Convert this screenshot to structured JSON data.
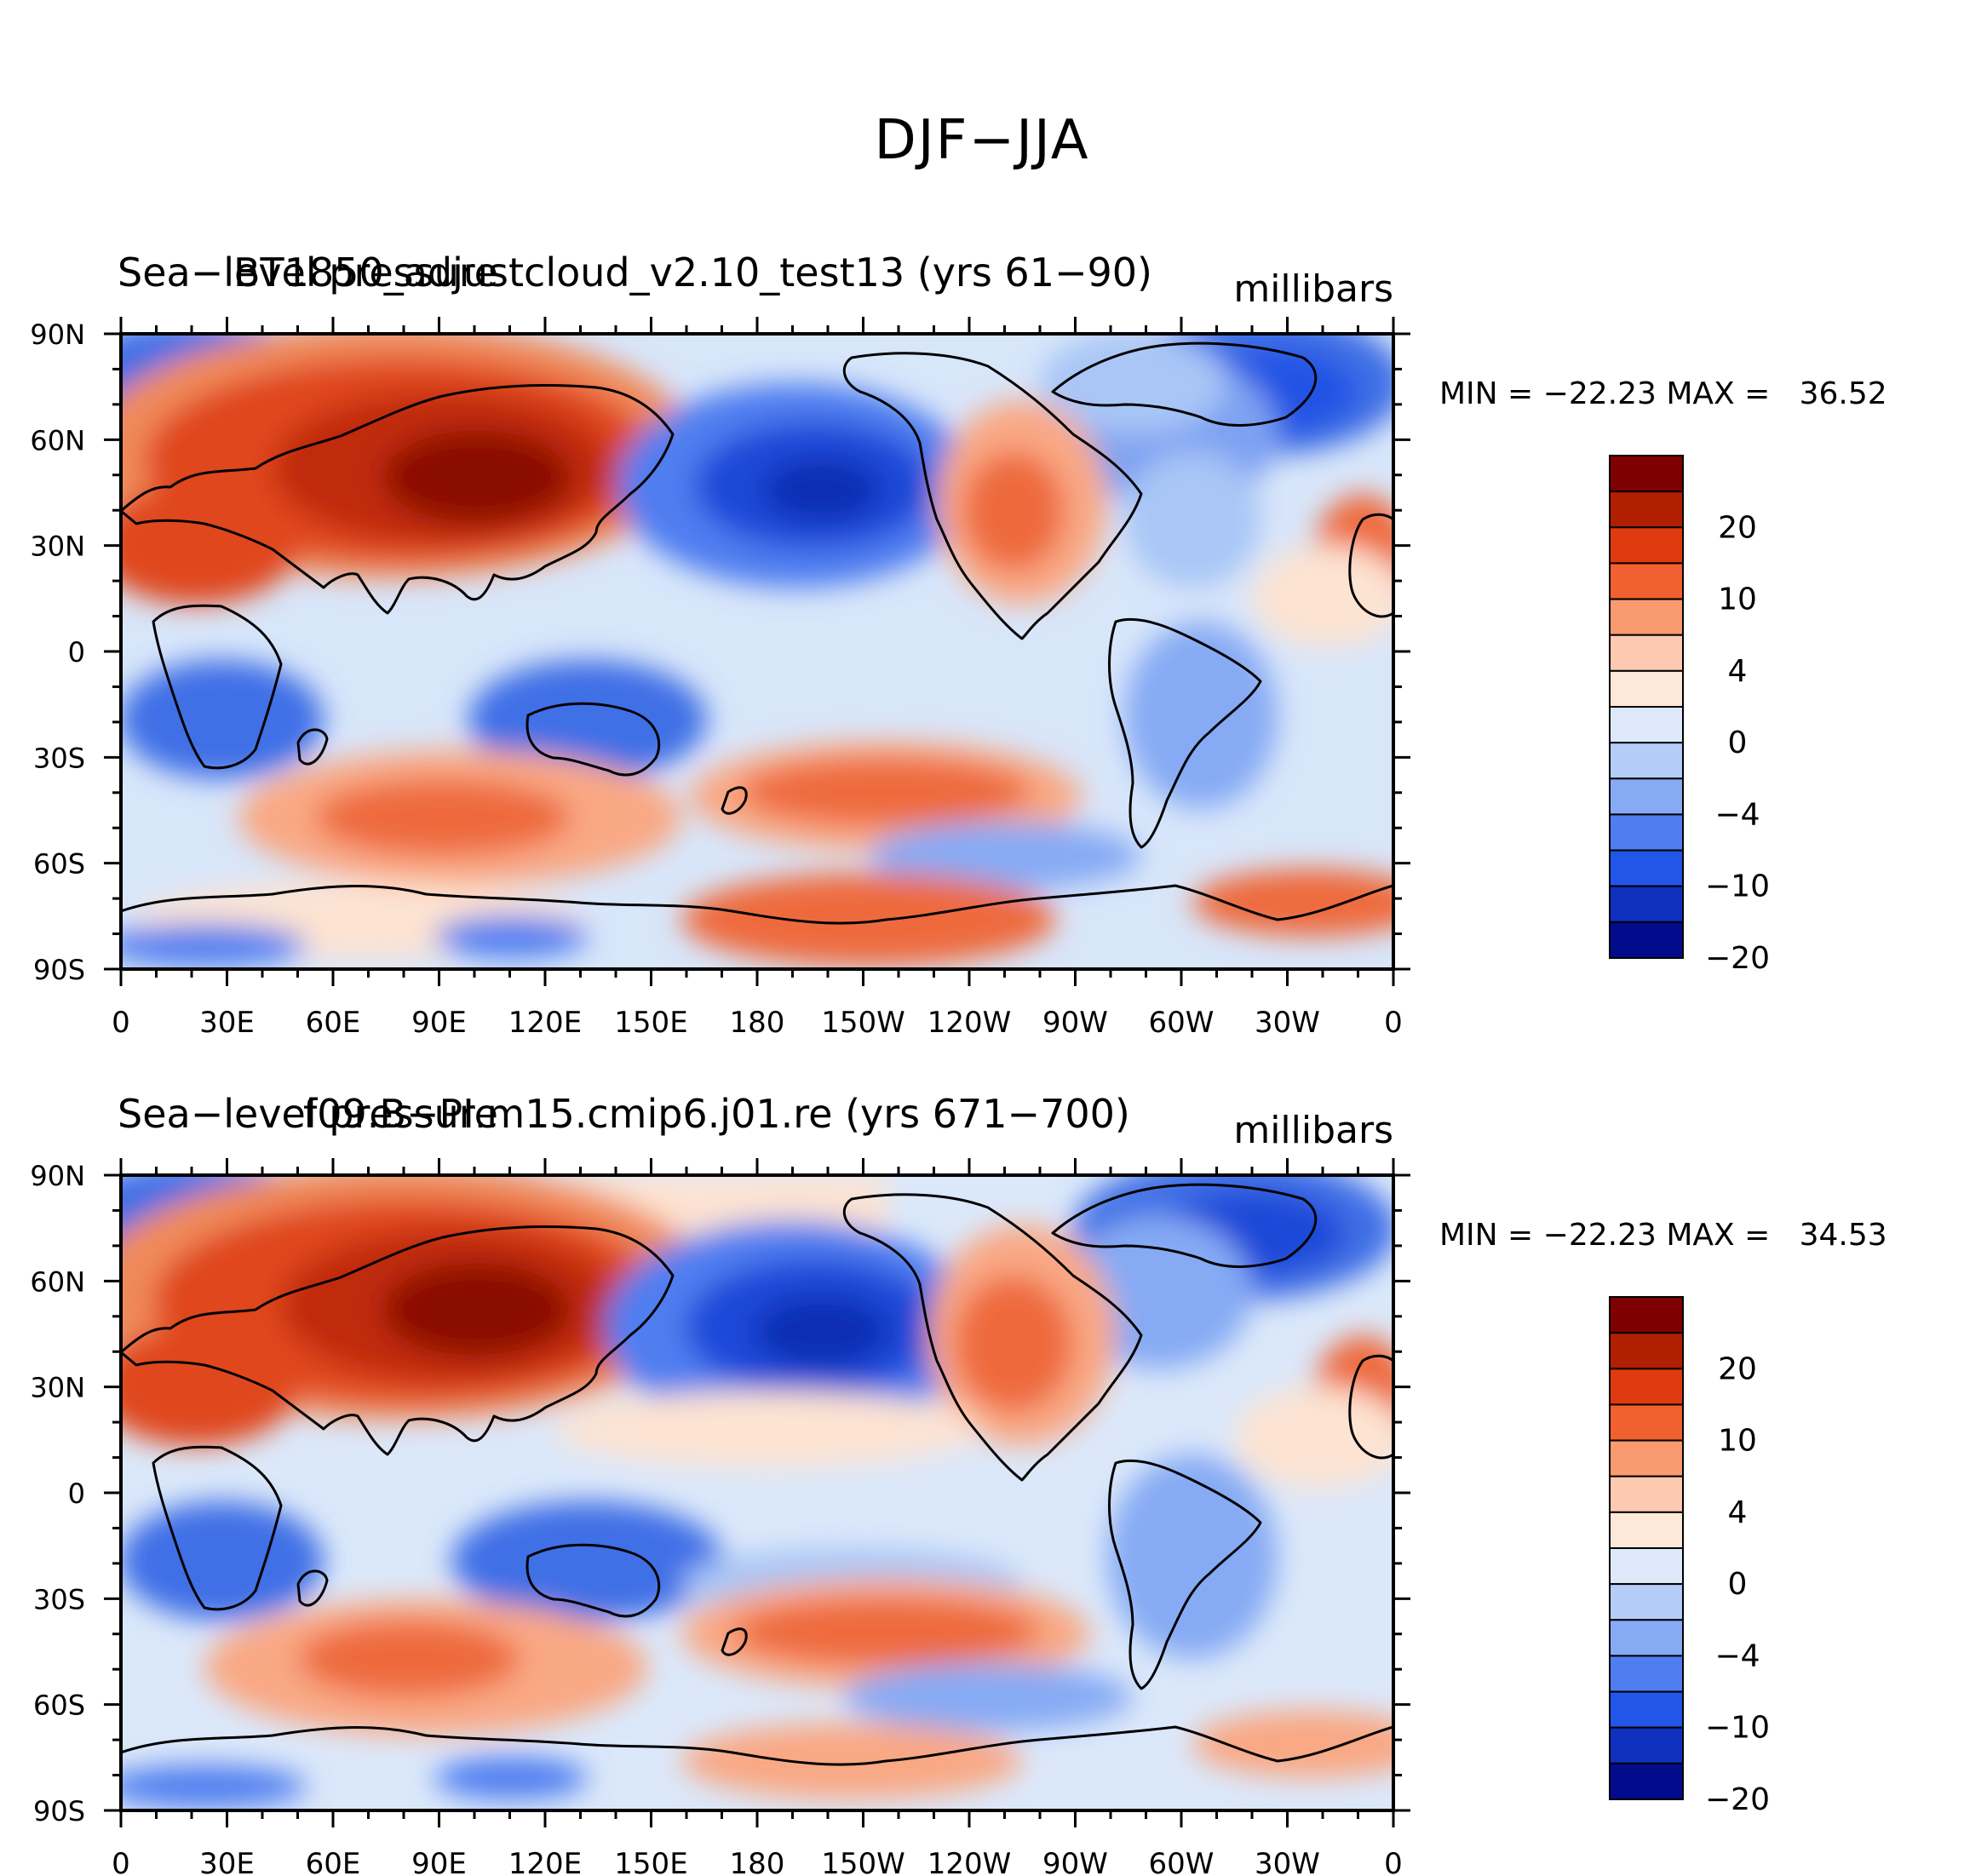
{
  "figure_title": "DJF−JJA",
  "chart_data": [
    {
      "type": "heatmap",
      "left_label": "Sea−level pressure",
      "title": "BT1850_adjustcloud_v2.10_test13 (yrs 61−90)",
      "units": "millibars",
      "stats_text": "MIN = −22.23 MAX =   36.52",
      "min": -22.23,
      "max": 36.52,
      "xlabel": "",
      "ylabel": "",
      "x_ticks": [
        "0",
        "30E",
        "60E",
        "90E",
        "120E",
        "150E",
        "180",
        "150W",
        "120W",
        "90W",
        "60W",
        "30W",
        "0"
      ],
      "y_ticks": [
        "90N",
        "60N",
        "30N",
        "0",
        "30S",
        "60S",
        "90S"
      ],
      "xlim": [
        0,
        360
      ],
      "ylim": [
        -90,
        90
      ]
    },
    {
      "type": "heatmap",
      "left_label": "Sea−level pressure",
      "title": "f09.B−PI.m15.cmip6.j01.re (yrs 671−700)",
      "units": "millibars",
      "stats_text": "MIN = −22.23 MAX =   34.53",
      "min": -22.23,
      "max": 34.53,
      "xlabel": "",
      "ylabel": "",
      "x_ticks": [
        "0",
        "30E",
        "60E",
        "90E",
        "120E",
        "150E",
        "180",
        "150W",
        "120W",
        "90W",
        "60W",
        "30W",
        "0"
      ],
      "y_ticks": [
        "90N",
        "60N",
        "30N",
        "0",
        "30S",
        "60S",
        "90S"
      ],
      "xlim": [
        0,
        360
      ],
      "ylim": [
        -90,
        90
      ]
    }
  ],
  "colorbar": {
    "colors": [
      "#7f0000",
      "#b02000",
      "#e03a10",
      "#f06030",
      "#fa9a70",
      "#fdc9b0",
      "#fee8d8",
      "#dde9fb",
      "#b4cdf8",
      "#86aaf4",
      "#4f7ef0",
      "#2256e8",
      "#1030c0",
      "#020b8c"
    ],
    "labels": [
      "20",
      "10",
      "4",
      "0",
      "−4",
      "−10",
      "−20"
    ]
  },
  "palette": {
    "deep_red": "#8a0c00",
    "red": "#d0401a",
    "orange_red": "#ee6a3c",
    "salmon": "#f9a884",
    "peach": "#fde3d2",
    "pale_blue": "#dbe8fa",
    "light_blue": "#a9c6f6",
    "blue": "#3f6fe6",
    "deep_blue": "#0b2fb4"
  }
}
